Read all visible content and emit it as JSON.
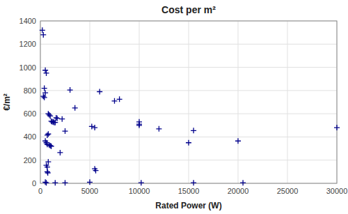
{
  "chart_data": {
    "type": "scatter",
    "title": "Cost per m²",
    "x_label": "Rated Power (W)",
    "y_label": "€/m²",
    "x": [
      200,
      300,
      500,
      600,
      400,
      500,
      300,
      400,
      3000,
      3500,
      800,
      900,
      1000,
      1100,
      1200,
      1300,
      1400,
      1500,
      1600,
      1700,
      2200,
      2500,
      800,
      700,
      500,
      600,
      700,
      900,
      1000,
      1100,
      2000,
      800,
      600,
      700,
      700,
      750,
      500,
      600,
      1500,
      2500,
      5000,
      5200,
      5500,
      5500,
      5600,
      7500,
      8000,
      6000,
      10000,
      10000,
      10000,
      10200,
      12000,
      15000,
      15500,
      15500,
      20000,
      20500,
      30000
    ],
    "values": [
      1320,
      1280,
      975,
      950,
      820,
      780,
      750,
      740,
      805,
      650,
      600,
      590,
      580,
      535,
      530,
      530,
      525,
      525,
      565,
      560,
      555,
      450,
      425,
      415,
      365,
      350,
      335,
      330,
      325,
      320,
      265,
      185,
      155,
      140,
      100,
      90,
      10,
      5,
      5,
      5,
      10,
      490,
      480,
      125,
      110,
      710,
      725,
      790,
      510,
      530,
      500,
      5,
      470,
      350,
      455,
      5,
      365,
      5,
      480
    ],
    "color": "#00008B",
    "marker": "plus",
    "xlim": [
      0,
      30000
    ],
    "ylim": [
      0,
      1400
    ],
    "xticks": [
      0,
      5000,
      10000,
      15000,
      20000,
      25000,
      30000
    ],
    "yticks": [
      0,
      200,
      400,
      600,
      800,
      1000,
      1200,
      1400
    ],
    "grid": true
  }
}
